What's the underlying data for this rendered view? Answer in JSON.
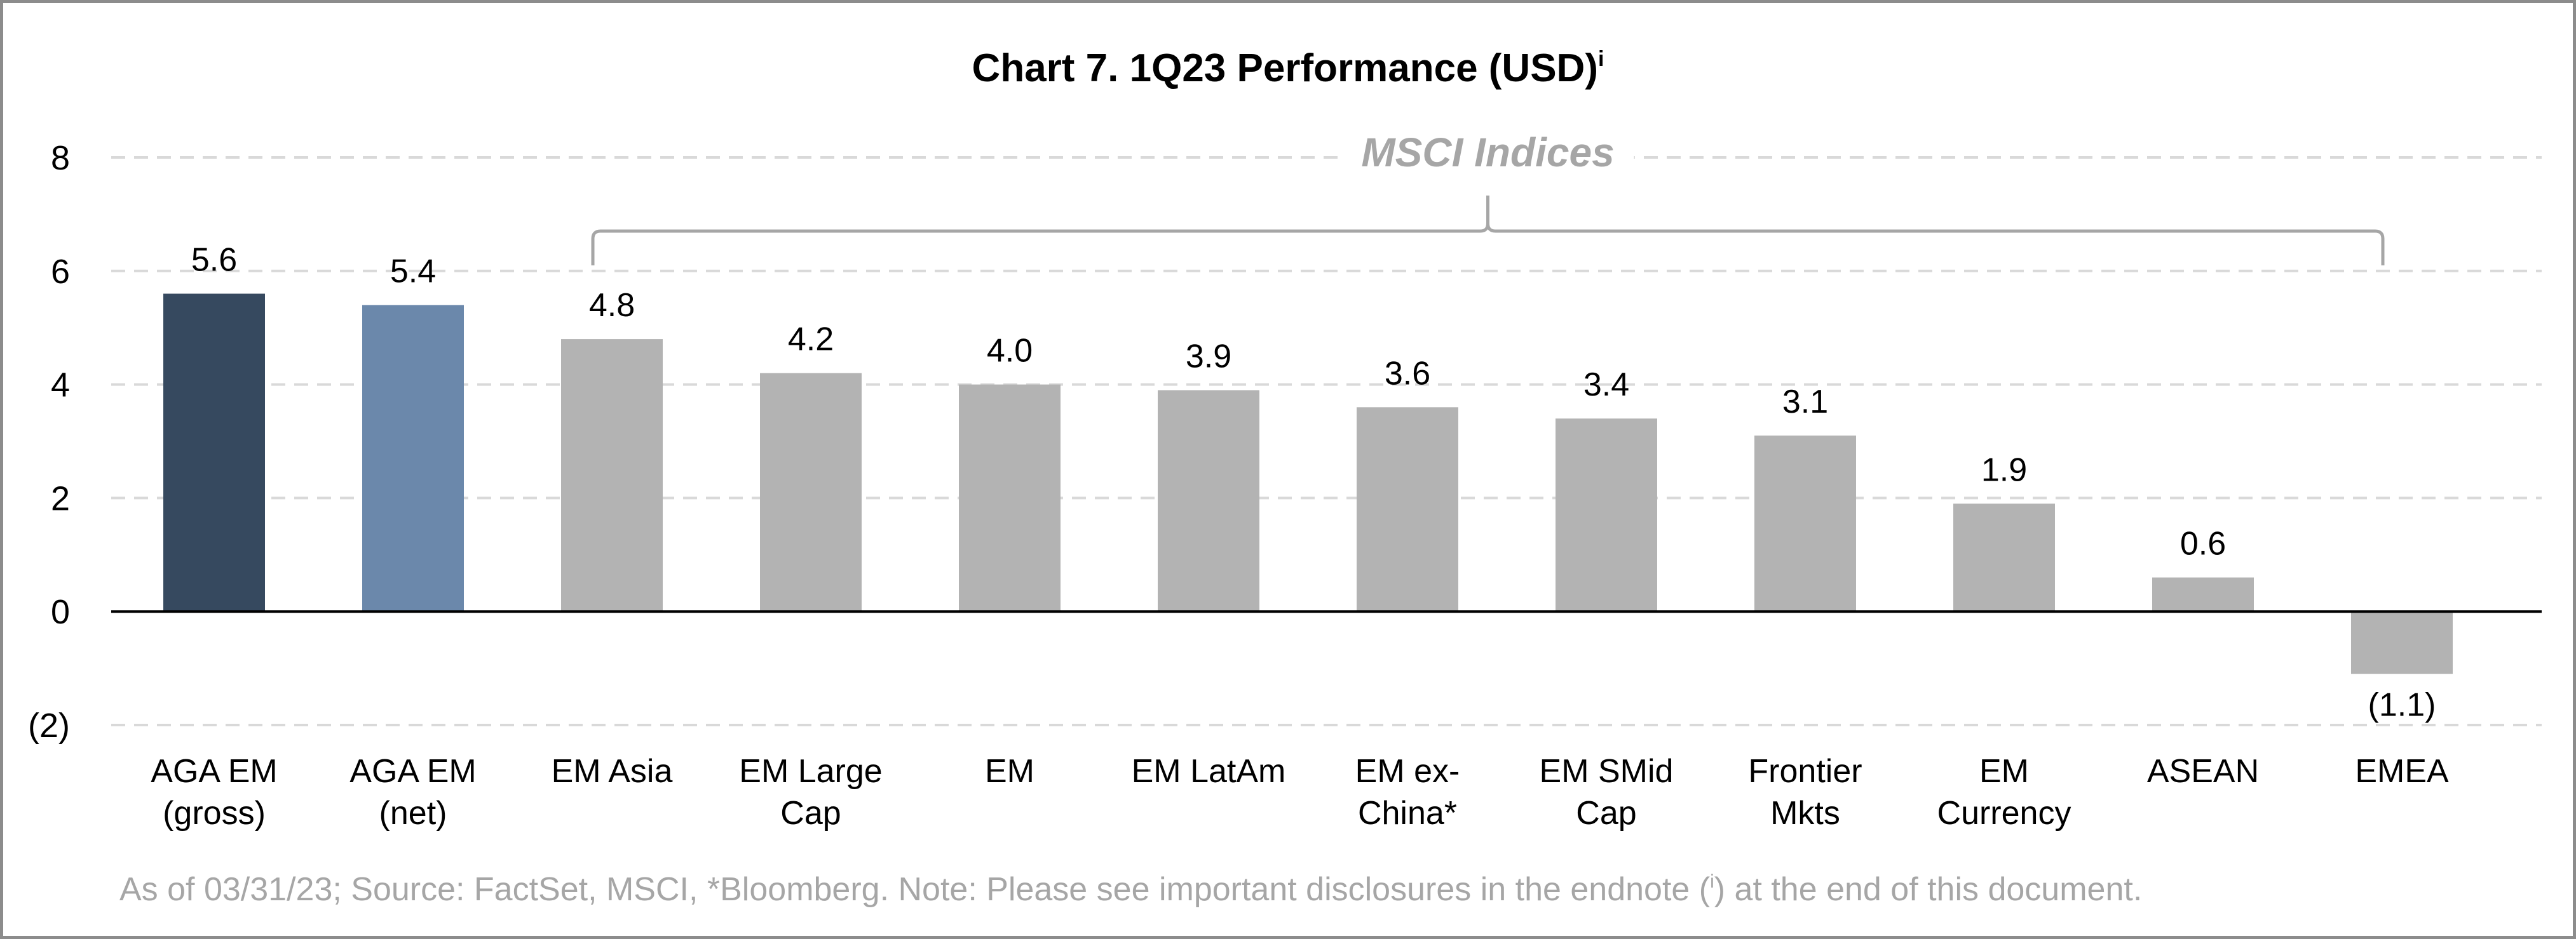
{
  "chart_data": {
    "type": "bar",
    "title": "Chart 7. 1Q23 Performance (USD)",
    "title_superscript": "i",
    "categories": [
      [
        "AGA EM",
        "(gross)"
      ],
      [
        "AGA EM",
        "(net)"
      ],
      [
        "EM Asia"
      ],
      [
        "EM Large",
        "Cap"
      ],
      [
        "EM"
      ],
      [
        "EM LatAm"
      ],
      [
        "EM ex-",
        "China*"
      ],
      [
        "EM SMid",
        "Cap"
      ],
      [
        "Frontier",
        "Mkts"
      ],
      [
        "EM",
        "Currency"
      ],
      [
        "ASEAN"
      ],
      [
        "EMEA"
      ]
    ],
    "values": [
      5.6,
      5.4,
      4.8,
      4.2,
      4.0,
      3.9,
      3.6,
      3.4,
      3.1,
      1.9,
      0.6,
      -1.1
    ],
    "data_labels": [
      "5.6",
      "5.4",
      "4.8",
      "4.2",
      "4.0",
      "3.9",
      "3.6",
      "3.4",
      "3.1",
      "1.9",
      "0.6",
      "(1.1)"
    ],
    "bar_colors": [
      "#36495f",
      "#6b88ab",
      "#b3b3b3",
      "#b3b3b3",
      "#b3b3b3",
      "#b3b3b3",
      "#b3b3b3",
      "#b3b3b3",
      "#b3b3b3",
      "#b3b3b3",
      "#b3b3b3",
      "#b3b3b3"
    ],
    "yticks": [
      8,
      6,
      4,
      2,
      0,
      -2
    ],
    "ytick_labels": [
      "8",
      "6",
      "4",
      "2",
      "0",
      "(2)"
    ],
    "ylim": [
      -2,
      8
    ],
    "grid": true,
    "gridline_style": "dashed",
    "bracket": {
      "label": "MSCI Indices",
      "from_category": 2,
      "to_category": 11,
      "color": "#a6a6a6"
    },
    "xlabel": "",
    "ylabel": ""
  },
  "footnote": {
    "before": "As of 03/31/23; Source: FactSet, MSCI, *Bloomberg. Note: Please see important disclosures in the endnote (",
    "sup": "i",
    "after": ") at the end of this document."
  }
}
